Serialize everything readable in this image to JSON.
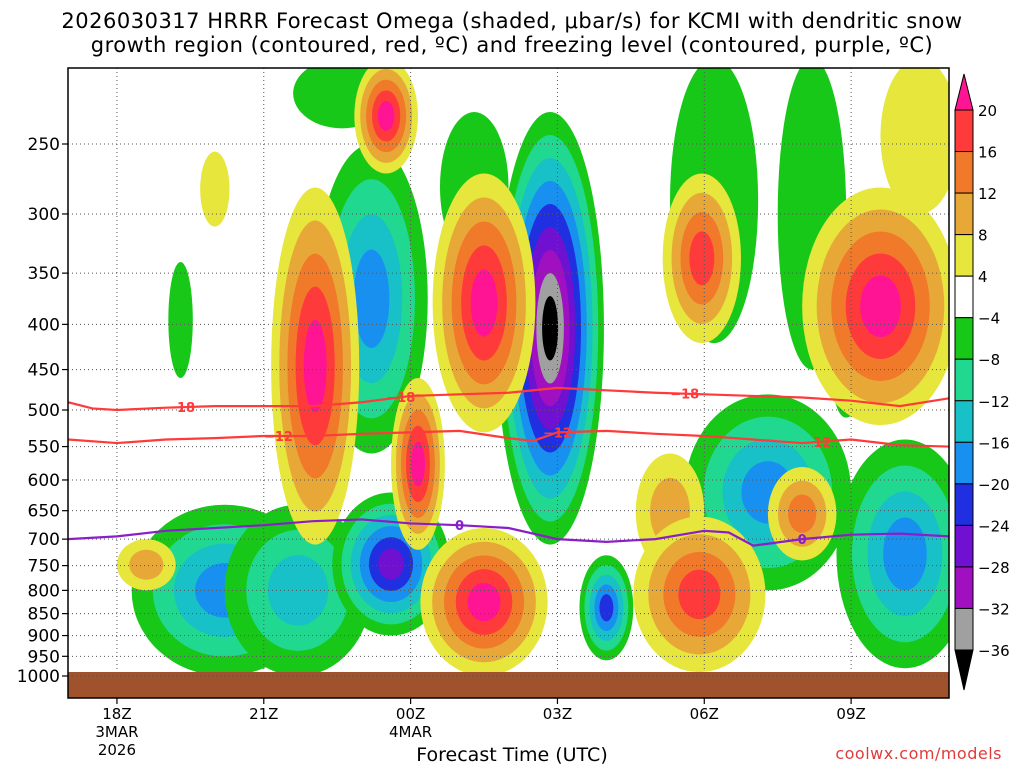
{
  "title_line1": "2026030317 HRRR Forecast Omega (shaded, μbar/s) for KCMI with dendritic snow",
  "title_line2": "growth region (contoured, red, ºC) and freezing level (contoured, purple, ºC)",
  "credit": "coolwx.com/models",
  "chart_data": {
    "type": "heatmap",
    "title": "2026030317 HRRR Forecast Omega (shaded, μbar/s) for KCMI with dendritic snow growth region (contoured, red, ºC) and freezing level (contoured, purple, ºC)",
    "xlabel": "Forecast Time (UTC)",
    "ylabel": "",
    "y_scale": "log-pressure (inverted)",
    "ylim": [
      1020,
      200
    ],
    "y_ticks": [
      250,
      300,
      350,
      400,
      450,
      500,
      550,
      600,
      650,
      700,
      750,
      800,
      850,
      900,
      950,
      1000
    ],
    "x_ticks": [
      {
        "hour": 18,
        "label": "18Z",
        "sub1": "3MAR",
        "sub2": "2026"
      },
      {
        "hour": 21,
        "label": "21Z",
        "sub1": "",
        "sub2": ""
      },
      {
        "hour": 24,
        "label": "00Z",
        "sub1": "4MAR",
        "sub2": ""
      },
      {
        "hour": 27,
        "label": "03Z",
        "sub1": "",
        "sub2": ""
      },
      {
        "hour": 30,
        "label": "06Z",
        "sub1": "",
        "sub2": ""
      },
      {
        "hour": 33,
        "label": "09Z",
        "sub1": "",
        "sub2": ""
      }
    ],
    "xlim": [
      17,
      35
    ],
    "grid": true,
    "colorbar": {
      "labels": [
        "20",
        "16",
        "12",
        "8",
        "4",
        "−4",
        "−8",
        "−12",
        "−16",
        "−20",
        "−24",
        "−28",
        "−32",
        "−36"
      ],
      "colors": [
        "#ff1493",
        "#ff3a3a",
        "#f07a2a",
        "#e8a838",
        "#e6e63c",
        "#ffffff",
        "#18c818",
        "#20d890",
        "#18c0c8",
        "#1890f0",
        "#2030e0",
        "#7010d0",
        "#a010c0",
        "#a0a0a0",
        "#000000"
      ]
    },
    "omega_regions": [
      {
        "name": "strong_ascent_core",
        "value": -40,
        "x": [
          25.9,
          27.4
        ],
        "p": [
          680,
          260
        ]
      },
      {
        "name": "descent_low_levels",
        "value": 20,
        "x": [
          24.2,
          26.9
        ],
        "p": [
          990,
          690
        ]
      },
      {
        "name": "descent_midlevel_21Z",
        "value": 20,
        "x": [
          21.6,
          22.9
        ],
        "p": [
          660,
          330
        ]
      },
      {
        "name": "descent_upper_2030Z",
        "value": 20,
        "x": [
          22.8,
          23.6
        ],
        "p": [
          240,
          210
        ]
      },
      {
        "name": "descent_300_350_01Z",
        "value": 20,
        "x": [
          24.9,
          26.1
        ],
        "p": [
          500,
          250
        ]
      },
      {
        "name": "descent_09Z_upper",
        "value": 16,
        "x": [
          32.6,
          34.5
        ],
        "p": [
          470,
          330
        ]
      },
      {
        "name": "descent_06Z_upper",
        "value": 16,
        "x": [
          29.3,
          30.8
        ],
        "p": [
          390,
          280
        ]
      },
      {
        "name": "descent_06Z_lower",
        "value": 16,
        "x": [
          28.7,
          31.4
        ],
        "p": [
          880,
          730
        ]
      },
      {
        "name": "ascent_2330Z_low",
        "value": -28,
        "x": [
          22.9,
          24.0
        ],
        "p": [
          820,
          690
        ]
      }
    ],
    "series": [
      {
        "name": "−18",
        "color": "#ff3a3a",
        "x": [
          17.0,
          17.5,
          18.0,
          19.0,
          20.0,
          21.0,
          22.0,
          23.0,
          24.0,
          25.0,
          26.0,
          27.0,
          28.0,
          29.0,
          30.0,
          31.0,
          32.0,
          33.0,
          34.0,
          35.0
        ],
        "p": [
          490,
          498,
          500,
          497,
          495,
          495,
          495,
          490,
          482,
          480,
          478,
          472,
          475,
          478,
          480,
          482,
          484,
          488,
          495,
          485
        ]
      },
      {
        "name": "−12",
        "color": "#ff3a3a",
        "x": [
          17.0,
          18.0,
          19.0,
          20.0,
          21.0,
          22.0,
          23.0,
          24.0,
          25.0,
          26.0,
          26.5,
          27.0,
          28.0,
          29.0,
          30.0,
          31.0,
          32.0,
          33.0,
          34.0,
          35.0
        ],
        "p": [
          540,
          545,
          540,
          538,
          535,
          535,
          532,
          530,
          528,
          538,
          542,
          530,
          528,
          532,
          535,
          540,
          545,
          540,
          548,
          550
        ]
      },
      {
        "name": "0",
        "color": "#8a1ec8",
        "x": [
          17.0,
          18.0,
          19.0,
          20.0,
          21.0,
          22.0,
          23.0,
          24.0,
          25.0,
          26.0,
          27.0,
          28.0,
          29.0,
          30.0,
          30.5,
          31.0,
          32.0,
          33.0,
          34.0,
          35.0
        ],
        "p": [
          700,
          695,
          685,
          680,
          675,
          668,
          665,
          672,
          675,
          680,
          700,
          705,
          700,
          685,
          688,
          712,
          700,
          692,
          690,
          695
        ]
      }
    ]
  }
}
